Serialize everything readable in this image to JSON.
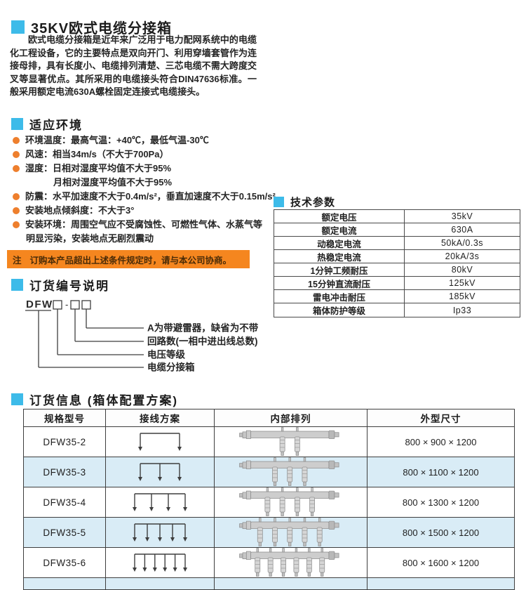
{
  "page": {
    "title": "35KV欧式电缆分接箱",
    "intro": "欧式电缆分接箱是近年来广泛用于电力配网系统中的电缆化工程设备，它的主要特点是双向开门、利用穿墙套管作为连接母排，具有长度小、电缆排列清楚、三芯电缆不需大跨度交叉等显著优点。其所采用的电缆接头符合DIN47636标准。一般采用额定电流630A螺栓固定连接式电缆接头。"
  },
  "environment": {
    "heading": "适应环境",
    "items": [
      {
        "lines": [
          "环境温度：最高气温：+40℃，最低气温-30℃"
        ]
      },
      {
        "lines": [
          "风速：相当34m/s（不大于700Pa）"
        ]
      },
      {
        "lines": [
          "湿度：日相对湿度平均值不大于95%",
          "月相对湿度平均值不大于95%"
        ],
        "indent2": 40
      },
      {
        "lines": [
          "防震：水平加速度不大于0.4m/s²，垂直加速度不大于0.15m/s²"
        ]
      },
      {
        "lines": [
          "安装地点倾斜度：不大于3°"
        ]
      },
      {
        "lines": [
          "安装环境：周围空气应不受腐蚀性、可燃性气体、水蒸气等",
          "明显污染，安装地点无剧烈震动"
        ],
        "indent2": 1
      }
    ],
    "note_label": "注",
    "note_text": "订购本产品超出上述条件规定时，请与本公司协商。"
  },
  "tech_params": {
    "heading": "技术参数",
    "rows": [
      [
        "额定电压",
        "35kV"
      ],
      [
        "额定电流",
        "630A"
      ],
      [
        "动稳定电流",
        "50kA/0.3s"
      ],
      [
        "热稳定电流",
        "20kA/3s"
      ],
      [
        "1分钟工频耐压",
        "80kV"
      ],
      [
        "15分钟直流耐压",
        "125kV"
      ],
      [
        "雷电冲击耐压",
        "185kV"
      ],
      [
        "箱体防护等级",
        "Ip33"
      ]
    ]
  },
  "order_code": {
    "heading": "订货编号说明",
    "prefix": "DFW",
    "separator": "-",
    "labels": [
      "A为带避雷器，缺省为不带",
      "回路数(一相中进出线总数)",
      "电压等级",
      "电缆分接箱"
    ]
  },
  "order_info": {
    "heading": "订货信息 (箱体配置方案)",
    "columns": [
      "规格型号",
      "接线方案",
      "内部排列",
      "外型尺寸"
    ],
    "rows": [
      {
        "model": "DFW35-2",
        "circuits": 2,
        "size": "800 × 900 × 1200"
      },
      {
        "model": "DFW35-3",
        "circuits": 3,
        "size": "800 × 1100 × 1200"
      },
      {
        "model": "DFW35-4",
        "circuits": 4,
        "size": "800 × 1300 × 1200"
      },
      {
        "model": "DFW35-5",
        "circuits": 5,
        "size": "800 × 1500 × 1200"
      },
      {
        "model": "DFW35-6",
        "circuits": 6,
        "size": "800 × 1600 × 1200"
      }
    ]
  },
  "colors": {
    "accent_blue": "#3dbbe9",
    "bullet_orange": "#ee7f2d",
    "note_bg": "#f5861f",
    "row_alt_bg": "#d9ecf6",
    "table_border": "#3e3e3e"
  }
}
